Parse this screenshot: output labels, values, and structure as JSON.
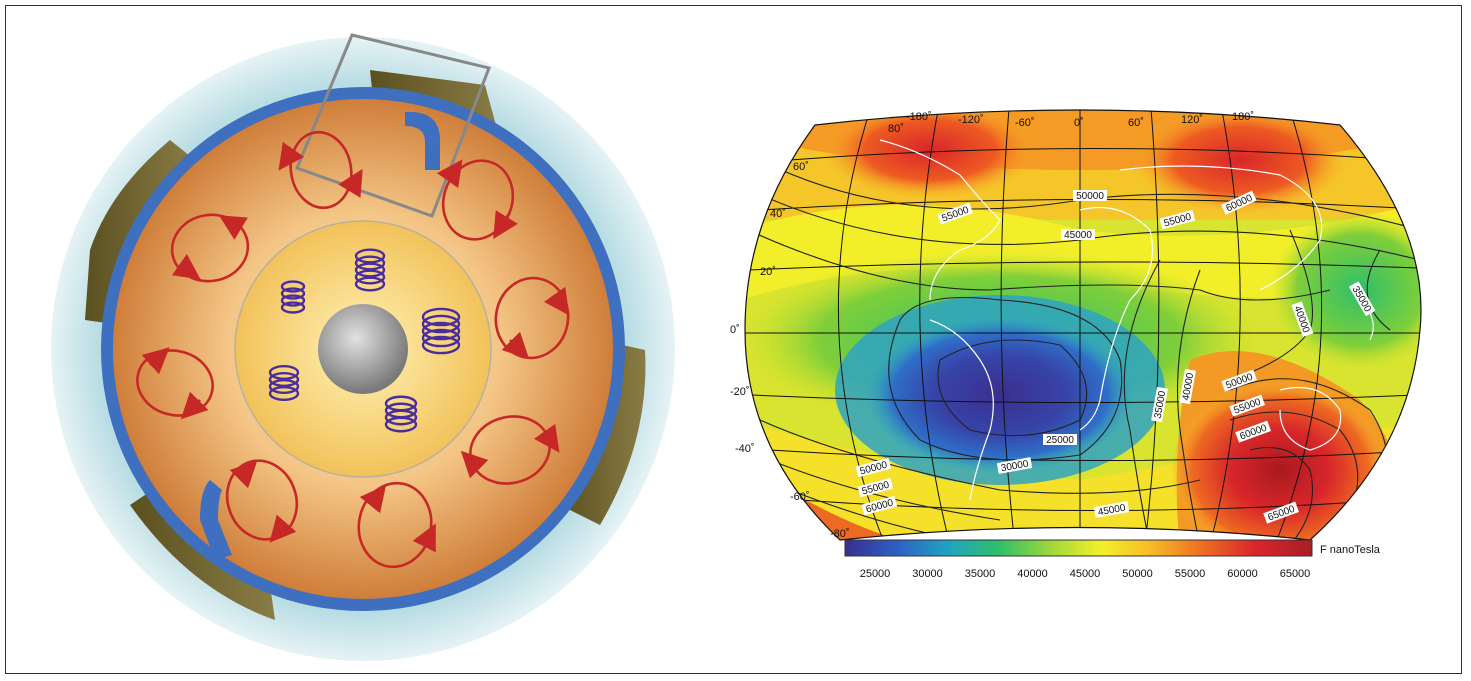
{
  "map": {
    "colorbar_title": "F nanoTesla",
    "colorbar_ticks": [
      "25000",
      "30000",
      "35000",
      "40000",
      "45000",
      "50000",
      "55000",
      "60000",
      "65000"
    ],
    "lon_labels": [
      "-180˚",
      "-120˚",
      "-60˚",
      "0˚",
      "60˚",
      "120˚",
      "180˚"
    ],
    "lat_labels": [
      "80˚",
      "60˚",
      "40˚",
      "20˚",
      "0˚",
      "-20˚",
      "-40˚",
      "-60˚",
      "-80˚"
    ],
    "contour_labels": [
      {
        "id": "c1",
        "text": "50000"
      },
      {
        "id": "c2",
        "text": "55000"
      },
      {
        "id": "c3",
        "text": "55000"
      },
      {
        "id": "c4",
        "text": "60000"
      },
      {
        "id": "c5",
        "text": "45000"
      },
      {
        "id": "c6",
        "text": "35000"
      },
      {
        "id": "c7",
        "text": "40000"
      },
      {
        "id": "c8",
        "text": "40000"
      },
      {
        "id": "c9",
        "text": "35000"
      },
      {
        "id": "c10",
        "text": "50000"
      },
      {
        "id": "c11",
        "text": "55000"
      },
      {
        "id": "c12",
        "text": "60000"
      },
      {
        "id": "c13",
        "text": "25000"
      },
      {
        "id": "c14",
        "text": "30000"
      },
      {
        "id": "c15",
        "text": "50000"
      },
      {
        "id": "c16",
        "text": "55000"
      },
      {
        "id": "c17",
        "text": "60000"
      },
      {
        "id": "c18",
        "text": "45000"
      },
      {
        "id": "c19",
        "text": "65000"
      }
    ],
    "colorbar_colors": [
      "#3a2f8f",
      "#2f5fc4",
      "#1fa3c2",
      "#2fbf6a",
      "#9fd83a",
      "#f5ef2a",
      "#f7b827",
      "#ee6a22",
      "#d8262a",
      "#a91e26"
    ]
  },
  "diagram": {
    "colors": {
      "mantle": "#e39a55",
      "outer_core": "#f6c965",
      "inner_core": "#999999",
      "atmosphere": "#cfe7ec",
      "plates": "#6e6230",
      "boundary": "#3f6fbf",
      "convection": "#c62828",
      "springs": "#4a2d9c"
    }
  }
}
